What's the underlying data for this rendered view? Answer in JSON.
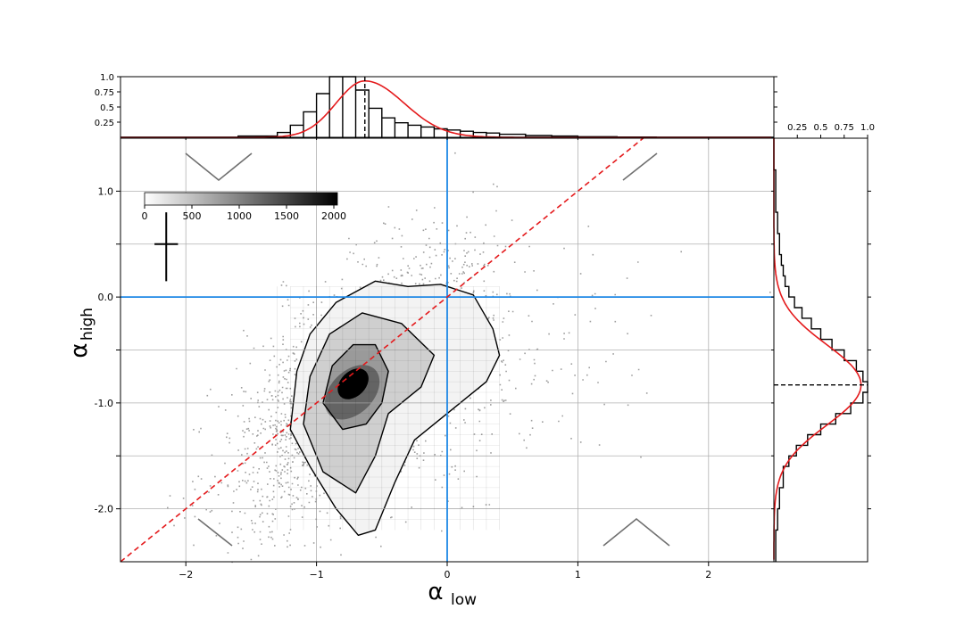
{
  "chart_data": {
    "type": "scatter",
    "main": {
      "xlabel_base": "α",
      "xlabel_sub": "low",
      "ylabel_base": "α",
      "ylabel_sub": "high",
      "xlim": [
        -2.5,
        2.5
      ],
      "ylim": [
        -2.5,
        1.5
      ],
      "xticks": [
        -2,
        -1,
        0,
        1,
        2
      ],
      "xtick_labels": [
        "−2",
        "−1",
        "0",
        "1",
        "2"
      ],
      "yticks_labeled": [
        1.0,
        0.0,
        -1.0,
        -2.0
      ],
      "ytick_labels": [
        "1.0",
        "0.0",
        "-1.0",
        "-2.0"
      ],
      "yticks_minor": [
        0.5,
        -0.5,
        -1.5
      ],
      "grid": true,
      "scatter_center": [
        -0.7,
        -0.85
      ],
      "density_peak": [
        -0.72,
        -0.82
      ],
      "reference_lines": {
        "vertical_x": 0,
        "horizontal_y": 0,
        "diagonal": "y = x"
      },
      "error_cross_center": [
        -2.15,
        0.5
      ],
      "colors": {
        "reference": "#1e88e5",
        "diagonal": "#e41a1c",
        "points": "#000000"
      }
    },
    "colorbar": {
      "range": [
        0,
        2000
      ],
      "tick_values": [
        0,
        500,
        1000,
        1500,
        2000
      ],
      "tick_labels": [
        "0",
        "500",
        "1000",
        "1500",
        "2000"
      ]
    },
    "top_histogram": {
      "ylim": [
        0,
        1
      ],
      "ytick_labels": [
        "0.25",
        "0.5",
        "0.75",
        "1.0"
      ],
      "peak_x": -0.63,
      "fit_mean": -0.63,
      "fit_color": "#e41a1c"
    },
    "right_histogram": {
      "xlim": [
        0,
        1
      ],
      "xtick_labels": [
        "0.25",
        "0.5",
        "0.75",
        "1.0"
      ],
      "peak_y": -0.83,
      "fit_mean": -0.83,
      "fit_color": "#e41a1c"
    }
  }
}
